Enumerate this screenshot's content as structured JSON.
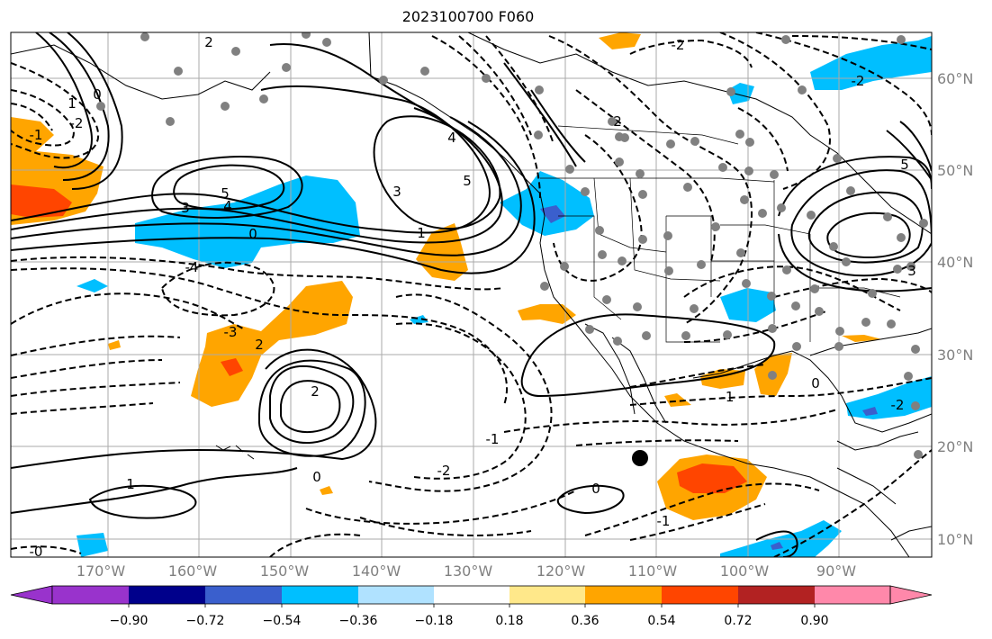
{
  "title": "2023100700 F060",
  "map": {
    "lon_labels": [
      "170°W",
      "160°W",
      "150°W",
      "140°W",
      "130°W",
      "120°W",
      "110°W",
      "100°W",
      "90°W"
    ],
    "lat_labels": [
      "60°N",
      "50°N",
      "40°N",
      "30°N",
      "20°N",
      "10°N"
    ],
    "contour_labels": [
      "2",
      "1",
      "0",
      "-2",
      "-1",
      "5",
      "4",
      "3",
      "-4",
      "-3",
      "0",
      "1",
      "2",
      "3",
      "5",
      "4",
      "-1",
      "-2",
      "0",
      "-1",
      "1",
      "-2",
      "0",
      "2",
      "3",
      "-2",
      "5",
      "2",
      "-2",
      "0",
      "-1",
      "-0"
    ]
  },
  "colorbar": {
    "ticks": [
      "−0.90",
      "−0.72",
      "−0.54",
      "−0.36",
      "−0.18",
      "0.18",
      "0.36",
      "0.54",
      "0.72",
      "0.90"
    ],
    "colors": [
      "#9933cc",
      "#00008b",
      "#3a5fcd",
      "#00bfff",
      "#b0e2ff",
      "#ffffff",
      "#ffe88a",
      "#ffa500",
      "#ff4500",
      "#b22222",
      "#ff88aa"
    ]
  },
  "palette": {
    "blue": "#00bfff",
    "deep_blue": "#3a5fcd",
    "orange": "#ffa500",
    "red_orange": "#ff4500",
    "station_grey": "#808080"
  }
}
